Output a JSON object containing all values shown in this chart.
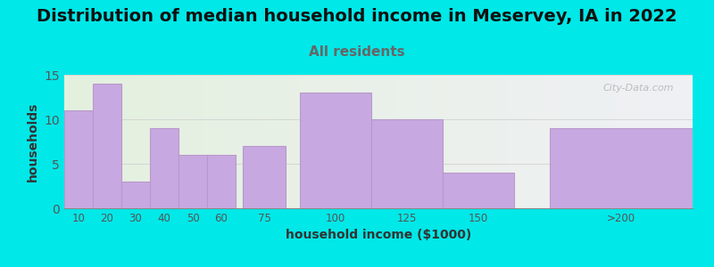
{
  "title": "Distribution of median household income in Meservey, IA in 2022",
  "subtitle": "All residents",
  "xlabel": "household income ($1000)",
  "ylabel": "households",
  "bar_left_edges": [
    5,
    15,
    25,
    35,
    45,
    55,
    67.5,
    87.5,
    112.5,
    137.5,
    175
  ],
  "bar_widths": [
    10,
    10,
    10,
    10,
    10,
    10,
    15,
    25,
    25,
    25,
    50
  ],
  "bar_centers": [
    10,
    20,
    30,
    40,
    50,
    60,
    75,
    100,
    125,
    150,
    200
  ],
  "tick_labels": [
    "10",
    "20",
    "30",
    "40",
    "50",
    "60",
    "75",
    "100",
    "125",
    "150",
    ">200"
  ],
  "values": [
    11,
    14,
    3,
    9,
    6,
    6,
    7,
    13,
    10,
    4,
    9
  ],
  "bar_color": "#c8a8e0",
  "bar_edge_color": "#b899cc",
  "background_color": "#00e8e8",
  "ylim": [
    0,
    15
  ],
  "yticks": [
    0,
    5,
    10,
    15
  ],
  "xlim": [
    5,
    225
  ],
  "title_fontsize": 14,
  "subtitle_fontsize": 11,
  "subtitle_color": "#666666",
  "axis_label_fontsize": 10,
  "watermark": "City-Data.com"
}
